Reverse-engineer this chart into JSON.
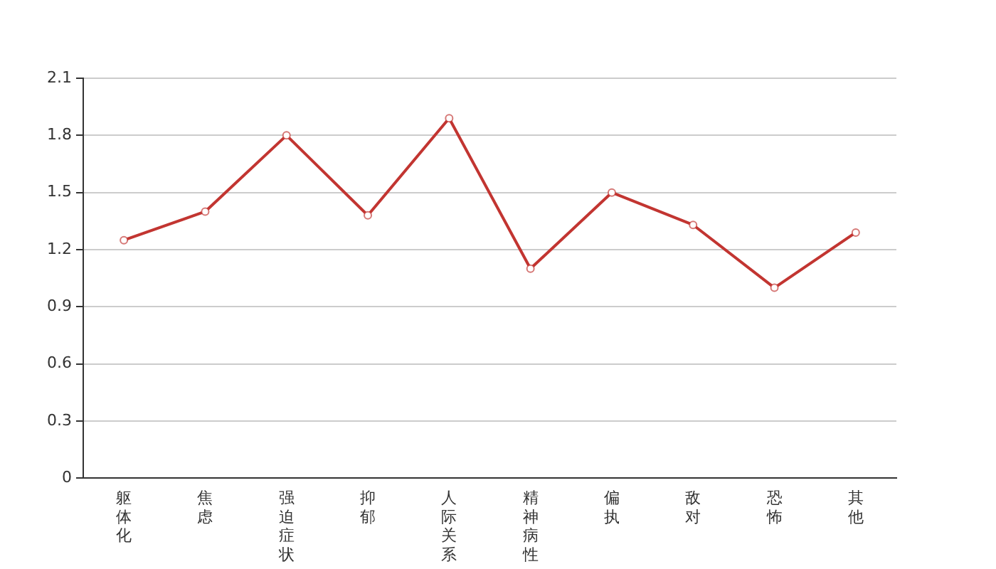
{
  "chart_data": {
    "type": "line",
    "categories": [
      "躯体化",
      "焦虑",
      "强迫症状",
      "抑郁",
      "人际关系",
      "精神病性",
      "偏执",
      "敌对",
      "恐怖",
      "其他"
    ],
    "series": [
      {
        "color": "#c23531",
        "values": [
          1.25,
          1.4,
          1.8,
          1.38,
          1.89,
          1.1,
          1.5,
          1.33,
          1.0,
          1.29
        ]
      }
    ],
    "ylim": [
      0,
      2.1
    ],
    "yticks": [
      0,
      0.3,
      0.6,
      0.9,
      1.2,
      1.5,
      1.8,
      2.1
    ],
    "grid": "y",
    "legend": false,
    "marker": "circle",
    "line_style": "solid"
  }
}
